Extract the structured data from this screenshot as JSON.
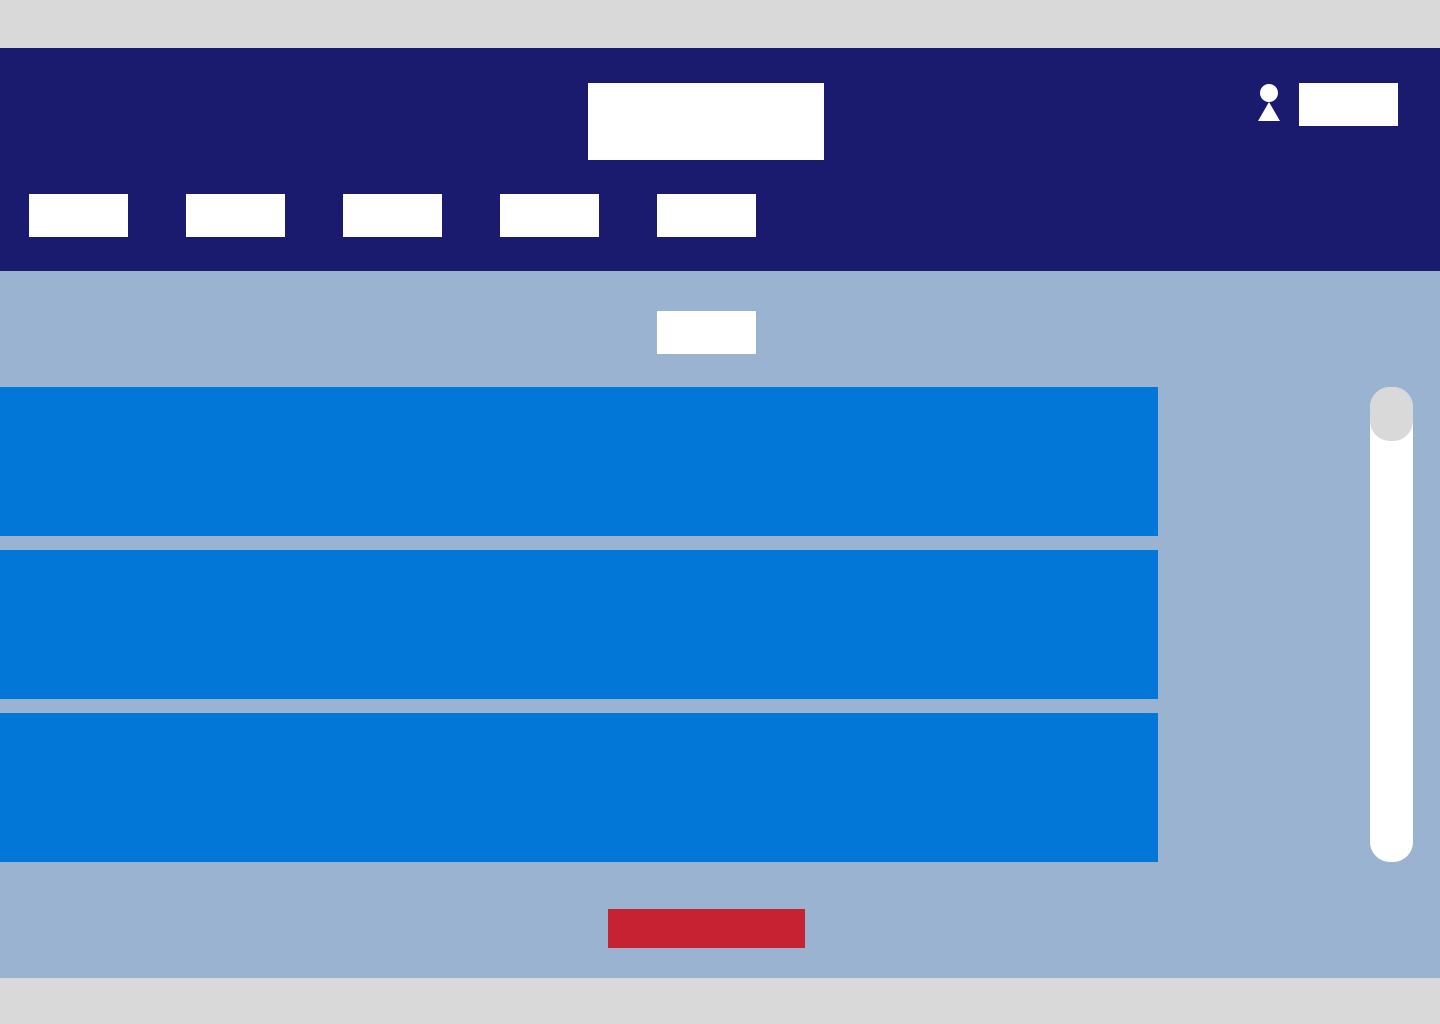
{
  "header": {
    "logo_text": "",
    "user": {
      "icon": "user-icon",
      "name": ""
    },
    "nav": [
      {
        "label": ""
      },
      {
        "label": ""
      },
      {
        "label": ""
      },
      {
        "label": ""
      },
      {
        "label": ""
      }
    ]
  },
  "main": {
    "section_title": "",
    "cards": [
      {
        "label": ""
      },
      {
        "label": ""
      },
      {
        "label": ""
      }
    ],
    "action_label": ""
  },
  "colors": {
    "header_bg": "#1a1a6e",
    "content_bg": "#99b3d1",
    "card_bg": "#0277d7",
    "action_bg": "#c72231",
    "scrollbar_track": "#ffffff",
    "scrollbar_thumb": "#d9d9d9"
  }
}
